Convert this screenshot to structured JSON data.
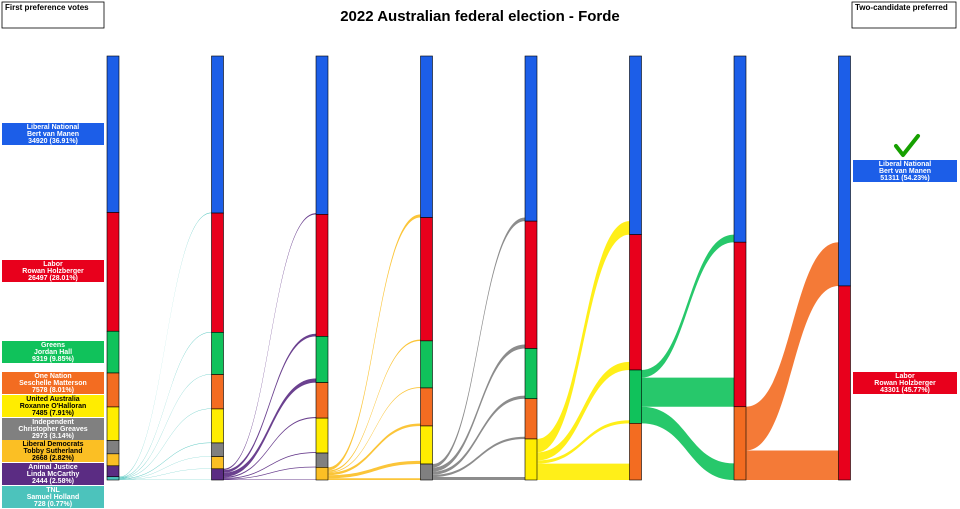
{
  "chart_data": {
    "type": "sankey",
    "title": "2022 Australian federal election - Forde",
    "first_label": "First preference votes",
    "final_label": "Two-candidate preferred",
    "candidates": [
      {
        "party": "Liberal National",
        "name": "Bert van Manen",
        "color": "#1c5ee8"
      },
      {
        "party": "Labor",
        "name": "Rowan Holzberger",
        "color": "#e8001c"
      },
      {
        "party": "Greens",
        "name": "Jordan Hall",
        "color": "#10c25b"
      },
      {
        "party": "One Nation",
        "name": "Seschelle Matterson",
        "color": "#f36c21"
      },
      {
        "party": "United Australia",
        "name": "Roxanne O'Halloran",
        "color": "#ffed00"
      },
      {
        "party": "Independent",
        "name": "Christopher Greaves",
        "color": "#808080"
      },
      {
        "party": "Liberal Democrats",
        "name": "Tobby Sutherland",
        "color": "#fbbf24"
      },
      {
        "party": "Animal Justice",
        "name": "Linda McCarthy",
        "color": "#5b2c83"
      },
      {
        "party": "TNL",
        "name": "Samuel Holland",
        "color": "#4cc3bc"
      }
    ],
    "rounds": [
      {
        "values": [
          34920,
          26497,
          9319,
          7578,
          7485,
          2973,
          2668,
          2444,
          728
        ],
        "value_labels": [
          "34920 (36.91%)",
          "26497 (28.01%)",
          "9319 (9.85%)",
          "7578 (8.01%)",
          "7485 (7.91%)",
          "2973 (3.14%)",
          "2668 (2.82%)",
          "2444 (2.58%)",
          "728 (0.77%)"
        ]
      },
      {
        "values": [
          35050,
          26617,
          9409,
          7678,
          7595,
          3033,
          2728,
          2502,
          null
        ],
        "transfers": [
          130,
          120,
          90,
          100,
          110,
          60,
          60,
          58,
          null
        ]
      },
      {
        "values": [
          35350,
          27217,
          10309,
          7928,
          7795,
          3183,
          2830,
          null,
          null
        ],
        "transfers": [
          300,
          600,
          900,
          250,
          200,
          150,
          102,
          null,
          null
        ]
      },
      {
        "values": [
          36050,
          27517,
          10509,
          8478,
          8495,
          3563,
          null,
          null,
          null
        ],
        "transfers": [
          700,
          300,
          200,
          550,
          700,
          380,
          null,
          null,
          null
        ]
      },
      {
        "values": [
          36850,
          28417,
          11209,
          8978,
          9158,
          null,
          null,
          null,
          null
        ],
        "transfers": [
          800,
          900,
          700,
          500,
          663,
          null,
          null,
          null,
          null
        ]
      },
      {
        "values": [
          39850,
          30217,
          11909,
          12636,
          null,
          null,
          null,
          null,
          null
        ],
        "transfers": [
          3000,
          1800,
          700,
          3658,
          null,
          null,
          null,
          null,
          null
        ]
      },
      {
        "values": [
          41550,
          36717,
          null,
          16345,
          null,
          null,
          null,
          null,
          null
        ],
        "transfers": [
          1700,
          6500,
          null,
          3709,
          null,
          null,
          null,
          null,
          null
        ]
      },
      {
        "values": [
          51311,
          43301,
          null,
          null,
          null,
          null,
          null,
          null,
          null
        ],
        "transfers": [
          9761,
          6584,
          null,
          null,
          null,
          null,
          null,
          null,
          null
        ],
        "value_labels": [
          "51311 (54.23%)",
          "43301 (45.77%)",
          null,
          null,
          null,
          null,
          null,
          null,
          null
        ]
      }
    ]
  }
}
